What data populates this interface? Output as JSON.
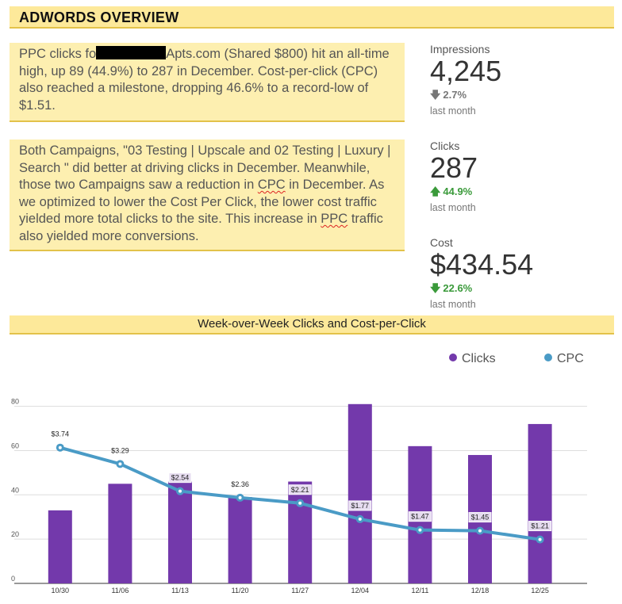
{
  "header": {
    "title": "ADWORDS OVERVIEW"
  },
  "notes": {
    "note1": {
      "before": "PPC clicks fo",
      "after": "Apts.com (Shared $800) hit an all-time high, up 89 (44.9%) to 287 in December. Cost-per-click (CPC) also reached a milestone, dropping 46.6% to a record-low of $1.51."
    },
    "note2": {
      "p1": "Both Campaigns, \"03 Testing | Upscale and 02 Testing | Luxury | Search \" did better at driving clicks in December. Meanwhile, those two Campaigns saw a reduction in ",
      "cpc": "CPC",
      "p2": " in December. As we optimized to lower the Cost Per Click, the lower cost traffic yielded more total clicks to the site. This increase in ",
      "ppc": "PPC",
      "p3": " traffic also yielded more conversions."
    }
  },
  "kpis": [
    {
      "label": "Impressions",
      "value": "4,245",
      "direction": "down",
      "delta": "2.7%",
      "sub": "last month"
    },
    {
      "label": "Clicks",
      "value": "287",
      "direction": "up",
      "delta": "44.9%",
      "sub": "last month"
    },
    {
      "label": "Cost",
      "value": "$434.54",
      "direction": "down",
      "delta": "22.6%",
      "sub": "last month"
    }
  ],
  "colors": {
    "clicks": "#7339ab",
    "cpc": "#4a9bc6",
    "up": "#3a9a3a",
    "down": "#777777",
    "header": "#fde99a"
  },
  "chart_data": {
    "type": "bar",
    "title": "Week-over-Week Clicks and Cost-per-Click",
    "categories": [
      "10/30",
      "11/06",
      "11/13",
      "11/20",
      "11/27",
      "12/04",
      "12/11",
      "12/18",
      "12/25"
    ],
    "series": [
      {
        "name": "Clicks",
        "type": "bar",
        "values": [
          33,
          45,
          46,
          39,
          46,
          81,
          62,
          58,
          72
        ]
      },
      {
        "name": "CPC",
        "type": "line",
        "values": [
          3.74,
          3.29,
          2.54,
          2.36,
          2.21,
          1.77,
          1.47,
          1.45,
          1.21
        ],
        "labels": [
          "$3.74",
          "$3.29",
          "$2.54",
          "$2.36",
          "$2.21",
          "$1.77",
          "$1.47",
          "$1.45",
          "$1.21"
        ]
      }
    ],
    "y_ticks": [
      0,
      20,
      40,
      60,
      80
    ],
    "ylim": [
      0,
      82
    ],
    "grid": true,
    "legend": "top-right"
  }
}
